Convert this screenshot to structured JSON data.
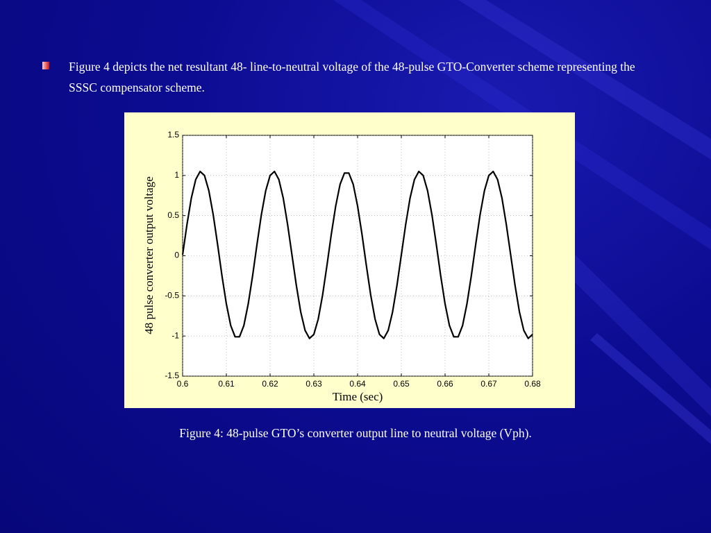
{
  "slide": {
    "bullet": "Figure 4 depicts the net resultant 48- line-to-neutral voltage of the 48-pulse GTO-Converter scheme representing the SSSC compensator scheme.",
    "caption": "Figure 4:  48-pulse GTO’s  converter output line to neutral voltage (Vph)."
  },
  "chart_data": {
    "type": "line",
    "xlabel": "Time (sec)",
    "ylabel": "48 pulse converter output voltage",
    "color": "#000000",
    "grid": true,
    "x": [
      0.6,
      0.601,
      0.602,
      0.603,
      0.604,
      0.605,
      0.606,
      0.607,
      0.608,
      0.609,
      0.61,
      0.611,
      0.612,
      0.613,
      0.614,
      0.615,
      0.616,
      0.617,
      0.618,
      0.619,
      0.62,
      0.621,
      0.622,
      0.623,
      0.624,
      0.625,
      0.626,
      0.627,
      0.628,
      0.629,
      0.63,
      0.631,
      0.632,
      0.633,
      0.634,
      0.635,
      0.636,
      0.637,
      0.638,
      0.639,
      0.64,
      0.641,
      0.642,
      0.643,
      0.644,
      0.645,
      0.646,
      0.647,
      0.648,
      0.649,
      0.65,
      0.651,
      0.652,
      0.653,
      0.654,
      0.655,
      0.656,
      0.657,
      0.658,
      0.659,
      0.66,
      0.661,
      0.662,
      0.663,
      0.664,
      0.665,
      0.666,
      0.667,
      0.668,
      0.669,
      0.67,
      0.671,
      0.672,
      0.673,
      0.674,
      0.675,
      0.676,
      0.677,
      0.678,
      0.679,
      0.68
    ],
    "values": [
      0.01,
      0.39,
      0.72,
      0.95,
      1.05,
      1.0,
      0.81,
      0.51,
      0.14,
      -0.25,
      -0.6,
      -0.87,
      -1.01,
      -1.01,
      -0.87,
      -0.6,
      -0.25,
      0.14,
      0.51,
      0.81,
      1.0,
      1.05,
      0.95,
      0.72,
      0.39,
      0.01,
      -0.37,
      -0.7,
      -0.93,
      -1.03,
      -0.98,
      -0.79,
      -0.49,
      -0.12,
      0.27,
      0.62,
      0.89,
      1.03,
      1.03,
      0.89,
      0.62,
      0.27,
      -0.12,
      -0.49,
      -0.79,
      -0.98,
      -1.03,
      -0.93,
      -0.7,
      -0.37,
      0.01,
      0.39,
      0.72,
      0.95,
      1.05,
      1.0,
      0.81,
      0.51,
      0.14,
      -0.25,
      -0.6,
      -0.87,
      -1.01,
      -1.01,
      -0.87,
      -0.6,
      -0.25,
      0.14,
      0.51,
      0.81,
      1.0,
      1.05,
      0.95,
      0.72,
      0.39,
      0.01,
      -0.37,
      -0.7,
      -0.93,
      -1.03,
      -0.98
    ],
    "xlim": [
      0.6,
      0.68
    ],
    "xticks": [
      0.6,
      0.61,
      0.62,
      0.63,
      0.64,
      0.65,
      0.66,
      0.67,
      0.68
    ],
    "ylim": [
      -1.5,
      1.5
    ],
    "yticks": [
      -1.5,
      -1,
      -0.5,
      0,
      0.5,
      1,
      1.5
    ]
  }
}
